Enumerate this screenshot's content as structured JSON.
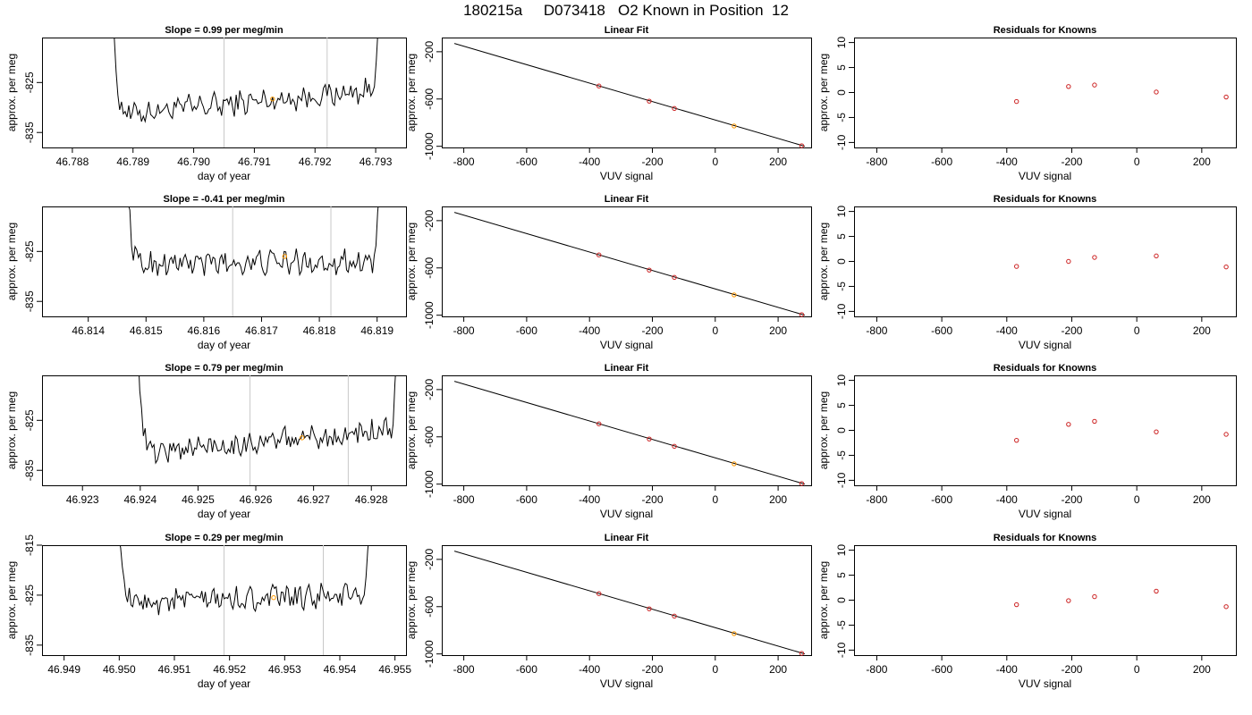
{
  "page_title": "180215a     D073418   O2 Known in Position  12",
  "colors": {
    "trace": "#000000",
    "vline": "#c8c8c8",
    "point_outline": "#cc2222",
    "point_orange": "#ff9900",
    "fit_line": "#000000"
  },
  "rows": [
    {
      "time_series": {
        "title": "Slope =  0.99  per meg/min",
        "xlabel": "day of year",
        "ylabel": "approx. per meg",
        "x_ticks": [
          "46.788",
          "46.789",
          "46.790",
          "46.791",
          "46.792",
          "46.793"
        ],
        "x_tick_values": [
          46.788,
          46.789,
          46.79,
          46.791,
          46.792,
          46.793
        ],
        "xlim": [
          46.7875,
          46.7935
        ],
        "y_ticks": [
          "-825",
          "-835"
        ],
        "y_tick_values": [
          -825,
          -835
        ],
        "ylim": [
          -838,
          -816
        ],
        "vlines": [
          46.7905,
          46.7922
        ],
        "x_start": 46.7886,
        "x_end": 46.7931,
        "baseline": -831.5,
        "end_level": -826.5,
        "marker": {
          "x": 46.7913,
          "y": -828.3
        }
      },
      "linear_fit": {
        "title": "Linear Fit",
        "xlabel": "VUV signal",
        "ylabel": "approx. per meg",
        "x_ticks": [
          "-800",
          "-600",
          "-400",
          "-200",
          "0",
          "200"
        ],
        "x_tick_values": [
          -800,
          -600,
          -400,
          -200,
          0,
          200
        ],
        "y_ticks": [
          "-200",
          "-600",
          "-1000"
        ],
        "y_tick_values": [
          -200,
          -600,
          -1000
        ],
        "xlim": [
          -870,
          305
        ],
        "ylim": [
          -1010,
          -80
        ],
        "line": [
          [
            -830,
            -130
          ],
          [
            285,
            -1000
          ]
        ],
        "points": [
          {
            "x": -370,
            "y": -490,
            "color": "#cc2222"
          },
          {
            "x": -210,
            "y": -618,
            "color": "#cc2222"
          },
          {
            "x": -130,
            "y": -680,
            "color": "#cc2222"
          },
          {
            "x": 60,
            "y": -828,
            "color": "#ff9900"
          },
          {
            "x": 275,
            "y": -995,
            "color": "#cc2222"
          }
        ]
      },
      "residuals": {
        "title": "Residuals for Knowns",
        "xlabel": "VUV signal",
        "ylabel": "approx. per meg",
        "x_ticks": [
          "-800",
          "-600",
          "-400",
          "-200",
          "0",
          "200"
        ],
        "x_tick_values": [
          -800,
          -600,
          -400,
          -200,
          0,
          200
        ],
        "y_ticks": [
          "-10",
          "-5",
          "0",
          "5",
          "10"
        ],
        "y_tick_values": [
          -10,
          -5,
          0,
          5,
          10
        ],
        "xlim": [
          -870,
          305
        ],
        "ylim": [
          -11,
          11
        ],
        "points": [
          {
            "x": -370,
            "y": -1.8
          },
          {
            "x": -210,
            "y": 1.2
          },
          {
            "x": -130,
            "y": 1.5
          },
          {
            "x": 60,
            "y": 0.1
          },
          {
            "x": 275,
            "y": -0.9
          }
        ]
      }
    },
    {
      "time_series": {
        "title": "Slope =  -0.41  per meg/min",
        "xlabel": "day of year",
        "ylabel": "approx. per meg",
        "x_ticks": [
          "46.814",
          "46.815",
          "46.816",
          "46.817",
          "46.818",
          "46.819"
        ],
        "x_tick_values": [
          46.814,
          46.815,
          46.816,
          46.817,
          46.818,
          46.819
        ],
        "xlim": [
          46.8132,
          46.8195
        ],
        "y_ticks": [
          "-825",
          "-835"
        ],
        "y_tick_values": [
          -825,
          -835
        ],
        "ylim": [
          -838,
          -816
        ],
        "vlines": [
          46.8165,
          46.8182
        ],
        "x_start": 46.8146,
        "x_end": 46.8191,
        "baseline": -827.5,
        "end_level": -827.0,
        "marker": {
          "x": 46.8174,
          "y": -826.0
        }
      },
      "linear_fit": {
        "title": "Linear Fit",
        "xlabel": "VUV signal",
        "ylabel": "approx. per meg",
        "x_ticks": [
          "-800",
          "-600",
          "-400",
          "-200",
          "0",
          "200"
        ],
        "x_tick_values": [
          -800,
          -600,
          -400,
          -200,
          0,
          200
        ],
        "y_ticks": [
          "-200",
          "-600",
          "-1000"
        ],
        "y_tick_values": [
          -200,
          -600,
          -1000
        ],
        "xlim": [
          -870,
          305
        ],
        "ylim": [
          -1010,
          -80
        ],
        "line": [
          [
            -830,
            -130
          ],
          [
            285,
            -1000
          ]
        ],
        "points": [
          {
            "x": -370,
            "y": -490,
            "color": "#cc2222"
          },
          {
            "x": -210,
            "y": -618,
            "color": "#cc2222"
          },
          {
            "x": -130,
            "y": -680,
            "color": "#cc2222"
          },
          {
            "x": 60,
            "y": -828,
            "color": "#ff9900"
          },
          {
            "x": 275,
            "y": -995,
            "color": "#cc2222"
          }
        ]
      },
      "residuals": {
        "title": "Residuals for Knowns",
        "xlabel": "VUV signal",
        "ylabel": "approx. per meg",
        "x_ticks": [
          "-800",
          "-600",
          "-400",
          "-200",
          "0",
          "200"
        ],
        "x_tick_values": [
          -800,
          -600,
          -400,
          -200,
          0,
          200
        ],
        "y_ticks": [
          "-10",
          "-5",
          "0",
          "5",
          "10"
        ],
        "y_tick_values": [
          -10,
          -5,
          0,
          5,
          10
        ],
        "xlim": [
          -870,
          305
        ],
        "ylim": [
          -11,
          11
        ],
        "points": [
          {
            "x": -370,
            "y": -1.0
          },
          {
            "x": -210,
            "y": 0.0
          },
          {
            "x": -130,
            "y": 0.8
          },
          {
            "x": 60,
            "y": 1.1
          },
          {
            "x": 275,
            "y": -1.1
          }
        ]
      }
    },
    {
      "time_series": {
        "title": "Slope =  0.79  per meg/min",
        "xlabel": "day of year",
        "ylabel": "approx. per meg",
        "x_ticks": [
          "46.923",
          "46.924",
          "46.925",
          "46.926",
          "46.927",
          "46.928"
        ],
        "x_tick_values": [
          46.923,
          46.924,
          46.925,
          46.926,
          46.927,
          46.928
        ],
        "xlim": [
          46.9223,
          46.9286
        ],
        "y_ticks": [
          "-825",
          "-835"
        ],
        "y_tick_values": [
          -825,
          -835
        ],
        "ylim": [
          -838,
          -816
        ],
        "vlines": [
          46.9259,
          46.9276
        ],
        "x_start": 46.9239,
        "x_end": 46.9285,
        "baseline": -831.5,
        "end_level": -827.0,
        "marker": {
          "x": 46.9268,
          "y": -828.5
        }
      },
      "linear_fit": {
        "title": "Linear Fit",
        "xlabel": "VUV signal",
        "ylabel": "approx. per meg",
        "x_ticks": [
          "-800",
          "-600",
          "-400",
          "-200",
          "0",
          "200"
        ],
        "x_tick_values": [
          -800,
          -600,
          -400,
          -200,
          0,
          200
        ],
        "y_ticks": [
          "-200",
          "-600",
          "-1000"
        ],
        "y_tick_values": [
          -200,
          -600,
          -1000
        ],
        "xlim": [
          -870,
          305
        ],
        "ylim": [
          -1010,
          -80
        ],
        "line": [
          [
            -830,
            -130
          ],
          [
            285,
            -1000
          ]
        ],
        "points": [
          {
            "x": -370,
            "y": -490,
            "color": "#cc2222"
          },
          {
            "x": -210,
            "y": -618,
            "color": "#cc2222"
          },
          {
            "x": -130,
            "y": -680,
            "color": "#cc2222"
          },
          {
            "x": 60,
            "y": -828,
            "color": "#ff9900"
          },
          {
            "x": 275,
            "y": -995,
            "color": "#cc2222"
          }
        ]
      },
      "residuals": {
        "title": "Residuals for Knowns",
        "xlabel": "VUV signal",
        "ylabel": "approx. per meg",
        "x_ticks": [
          "-800",
          "-600",
          "-400",
          "-200",
          "0",
          "200"
        ],
        "x_tick_values": [
          -800,
          -600,
          -400,
          -200,
          0,
          200
        ],
        "y_ticks": [
          "-10",
          "-5",
          "0",
          "5",
          "10"
        ],
        "y_tick_values": [
          -10,
          -5,
          0,
          5,
          10
        ],
        "xlim": [
          -870,
          305
        ],
        "ylim": [
          -11,
          11
        ],
        "points": [
          {
            "x": -370,
            "y": -2.0
          },
          {
            "x": -210,
            "y": 1.2
          },
          {
            "x": -130,
            "y": 1.8
          },
          {
            "x": 60,
            "y": -0.3
          },
          {
            "x": 275,
            "y": -0.8
          }
        ]
      }
    },
    {
      "time_series": {
        "title": "Slope =  0.29  per meg/min",
        "xlabel": "day of year",
        "ylabel": "approx. per meg",
        "x_ticks": [
          "46.949",
          "46.950",
          "46.951",
          "46.952",
          "46.953",
          "46.954",
          "46.955"
        ],
        "x_tick_values": [
          46.949,
          46.95,
          46.951,
          46.952,
          46.953,
          46.954,
          46.955
        ],
        "y_ticks": [
          "-815",
          "-825",
          "-835"
        ],
        "y_tick_values": [
          -815,
          -825,
          -835
        ],
        "xlim": [
          46.9486,
          46.9552
        ],
        "ylim": [
          -837,
          -815
        ],
        "vlines": [
          46.9519,
          46.9537
        ],
        "x_start": 46.9499,
        "x_end": 46.9546,
        "baseline": -826.5,
        "end_level": -825.0,
        "marker": {
          "x": 46.9528,
          "y": -825.5
        }
      },
      "linear_fit": {
        "title": "Linear Fit",
        "xlabel": "VUV signal",
        "ylabel": "approx. per meg",
        "x_ticks": [
          "-800",
          "-600",
          "-400",
          "-200",
          "0",
          "200"
        ],
        "x_tick_values": [
          -800,
          -600,
          -400,
          -200,
          0,
          200
        ],
        "y_ticks": [
          "-200",
          "-600",
          "-1000"
        ],
        "y_tick_values": [
          -200,
          -600,
          -1000
        ],
        "xlim": [
          -870,
          305
        ],
        "ylim": [
          -1010,
          -80
        ],
        "line": [
          [
            -830,
            -130
          ],
          [
            285,
            -1000
          ]
        ],
        "points": [
          {
            "x": -370,
            "y": -490,
            "color": "#cc2222"
          },
          {
            "x": -210,
            "y": -618,
            "color": "#cc2222"
          },
          {
            "x": -130,
            "y": -680,
            "color": "#cc2222"
          },
          {
            "x": 60,
            "y": -828,
            "color": "#ff9900"
          },
          {
            "x": 275,
            "y": -995,
            "color": "#cc2222"
          }
        ]
      },
      "residuals": {
        "title": "Residuals for Knowns",
        "xlabel": "VUV signal",
        "ylabel": "approx. per meg",
        "x_ticks": [
          "-800",
          "-600",
          "-400",
          "-200",
          "0",
          "200"
        ],
        "x_tick_values": [
          -800,
          -600,
          -400,
          -200,
          0,
          200
        ],
        "y_ticks": [
          "-10",
          "-5",
          "0",
          "5",
          "10"
        ],
        "y_tick_values": [
          -10,
          -5,
          0,
          5,
          10
        ],
        "xlim": [
          -870,
          305
        ],
        "ylim": [
          -11,
          11
        ],
        "points": [
          {
            "x": -370,
            "y": -0.9
          },
          {
            "x": -210,
            "y": -0.1
          },
          {
            "x": -130,
            "y": 0.7
          },
          {
            "x": 60,
            "y": 1.8
          },
          {
            "x": 275,
            "y": -1.3
          }
        ]
      }
    }
  ]
}
